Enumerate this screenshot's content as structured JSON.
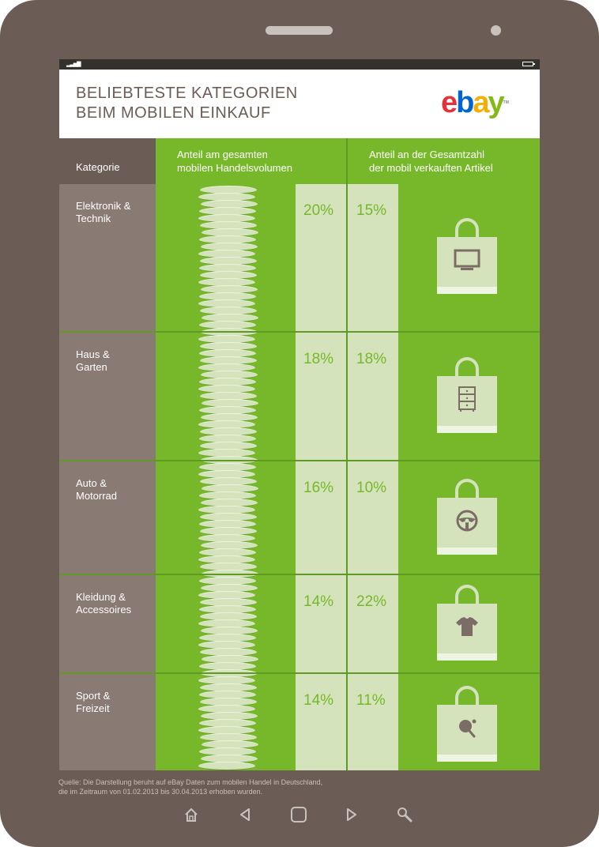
{
  "header": {
    "title_line1": "BELIEBTESTE KATEGORIEN",
    "title_line2": "BEIM MOBILEN EINKAUF",
    "logo": [
      "e",
      "b",
      "a",
      "y"
    ],
    "logo_tm": "TM"
  },
  "table": {
    "col_category": "Kategorie",
    "col_volume": "Anteil am gesamten\nmobilen Handelsvolumen",
    "col_items": "Anteil an der Gesamtzahl\nder mobil verkauften Artikel",
    "rows": [
      {
        "category": "Elektronik &\nTechnik",
        "volume": "20%",
        "items": "15%",
        "icon": "tv-icon"
      },
      {
        "category": "Haus &\nGarten",
        "volume": "18%",
        "items": "18%",
        "icon": "dresser-icon"
      },
      {
        "category": "Auto &\nMotorrad",
        "volume": "16%",
        "items": "10%",
        "icon": "steering-wheel-icon"
      },
      {
        "category": "Kleidung &\nAccessoires",
        "volume": "14%",
        "items": "22%",
        "icon": "tshirt-icon"
      },
      {
        "category": "Sport &\nFreizeit",
        "volume": "14%",
        "items": "11%",
        "icon": "ping-pong-icon"
      }
    ]
  },
  "source": {
    "line1": "Quelle: Die Darstellung beruht auf eBay Daten zum mobilen Handel in Deutschland,",
    "line2": "die im Zeitraum von 01.02.2013 bis 30.04.2013 erhoben wurden."
  },
  "colors": {
    "frame": "#6b5d55",
    "green": "#76b82a",
    "light_green": "#d4e3bc",
    "category_bg": "#897b73",
    "logo": [
      "#e53238",
      "#0064d2",
      "#f5af02",
      "#86b817"
    ]
  },
  "nav": [
    "home-icon",
    "back-icon",
    "recent-apps-icon",
    "forward-icon",
    "search-icon"
  ]
}
